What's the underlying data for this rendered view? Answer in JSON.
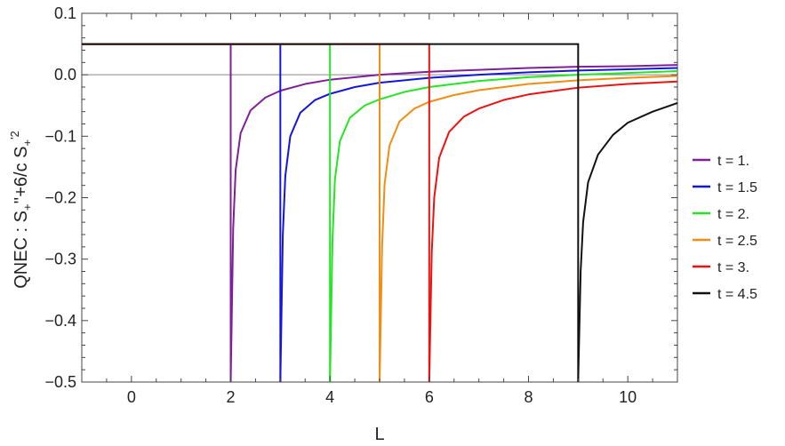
{
  "chart_data": {
    "type": "line",
    "title": "",
    "xlabel": "L",
    "ylabel_parts": {
      "main": "QNEC : S",
      "sub1": "+",
      "mid": "''+6/c S",
      "sub2": "+",
      "sup2": "'2"
    },
    "xlim": [
      -1,
      11
    ],
    "ylim": [
      -0.5,
      0.1
    ],
    "x_ticks": [
      0,
      2,
      4,
      6,
      8,
      10
    ],
    "y_ticks": [
      0.1,
      0.0,
      -0.1,
      -0.2,
      -0.3,
      -0.4,
      -0.5
    ],
    "x_tick_labels": [
      "0",
      "2",
      "4",
      "6",
      "8",
      "10"
    ],
    "y_tick_labels": [
      "0.1",
      "0.0",
      "−0.1",
      "−0.2",
      "−0.3",
      "−0.4",
      "−0.5"
    ],
    "legend_position": "right",
    "series": [
      {
        "name": "t = 1.",
        "color": "#7f1f99",
        "start": 2,
        "plateau": 0.05,
        "curve": [
          [
            2.0,
            -0.5
          ],
          [
            2.05,
            -0.25
          ],
          [
            2.1,
            -0.155
          ],
          [
            2.2,
            -0.095
          ],
          [
            2.4,
            -0.058
          ],
          [
            2.7,
            -0.037
          ],
          [
            3.0,
            -0.026
          ],
          [
            3.5,
            -0.015
          ],
          [
            4.0,
            -0.008
          ],
          [
            5.0,
            0.0
          ],
          [
            6.0,
            0.005
          ],
          [
            7.0,
            0.008
          ],
          [
            8.0,
            0.011
          ],
          [
            9.0,
            0.013
          ],
          [
            10.0,
            0.014
          ],
          [
            11.0,
            0.016
          ]
        ]
      },
      {
        "name": "t = 1.5",
        "color": "#1515e0",
        "start": 3,
        "plateau": 0.05,
        "curve": [
          [
            3.0,
            -0.5
          ],
          [
            3.05,
            -0.26
          ],
          [
            3.1,
            -0.165
          ],
          [
            3.2,
            -0.1
          ],
          [
            3.4,
            -0.062
          ],
          [
            3.7,
            -0.041
          ],
          [
            4.0,
            -0.031
          ],
          [
            4.5,
            -0.02
          ],
          [
            5.0,
            -0.013
          ],
          [
            6.0,
            -0.005
          ],
          [
            7.0,
            0.0
          ],
          [
            8.0,
            0.004
          ],
          [
            9.0,
            0.007
          ],
          [
            10.0,
            0.009
          ],
          [
            11.0,
            0.011
          ]
        ]
      },
      {
        "name": "t = 2.",
        "color": "#22e622",
        "start": 4,
        "plateau": 0.05,
        "curve": [
          [
            4.0,
            -0.5
          ],
          [
            4.05,
            -0.27
          ],
          [
            4.1,
            -0.17
          ],
          [
            4.2,
            -0.108
          ],
          [
            4.4,
            -0.07
          ],
          [
            4.7,
            -0.05
          ],
          [
            5.0,
            -0.04
          ],
          [
            5.5,
            -0.028
          ],
          [
            6.0,
            -0.02
          ],
          [
            7.0,
            -0.01
          ],
          [
            8.0,
            -0.004
          ],
          [
            9.0,
            0.0
          ],
          [
            10.0,
            0.003
          ],
          [
            11.0,
            0.006
          ]
        ]
      },
      {
        "name": "t = 2.5",
        "color": "#f28c12",
        "start": 5,
        "plateau": 0.05,
        "curve": [
          [
            5.0,
            -0.5
          ],
          [
            5.05,
            -0.28
          ],
          [
            5.1,
            -0.178
          ],
          [
            5.2,
            -0.115
          ],
          [
            5.4,
            -0.076
          ],
          [
            5.7,
            -0.055
          ],
          [
            6.0,
            -0.044
          ],
          [
            6.5,
            -0.033
          ],
          [
            7.0,
            -0.025
          ],
          [
            8.0,
            -0.015
          ],
          [
            9.0,
            -0.009
          ],
          [
            10.0,
            -0.005
          ],
          [
            11.0,
            -0.002
          ]
        ]
      },
      {
        "name": "t = 3.",
        "color": "#ee1111",
        "start": 6,
        "plateau": 0.05,
        "curve": [
          [
            6.0,
            -0.5
          ],
          [
            6.05,
            -0.29
          ],
          [
            6.1,
            -0.2
          ],
          [
            6.2,
            -0.135
          ],
          [
            6.4,
            -0.093
          ],
          [
            6.7,
            -0.068
          ],
          [
            7.0,
            -0.055
          ],
          [
            7.5,
            -0.041
          ],
          [
            8.0,
            -0.032
          ],
          [
            9.0,
            -0.021
          ],
          [
            10.0,
            -0.015
          ],
          [
            11.0,
            -0.011
          ]
        ]
      },
      {
        "name": "t = 4.5",
        "color": "#111111",
        "start": 9,
        "plateau": 0.05,
        "curve": [
          [
            9.0,
            -0.5
          ],
          [
            9.05,
            -0.32
          ],
          [
            9.1,
            -0.24
          ],
          [
            9.2,
            -0.175
          ],
          [
            9.4,
            -0.13
          ],
          [
            9.7,
            -0.098
          ],
          [
            10.0,
            -0.078
          ],
          [
            10.5,
            -0.06
          ],
          [
            11.0,
            -0.046
          ]
        ]
      }
    ]
  }
}
